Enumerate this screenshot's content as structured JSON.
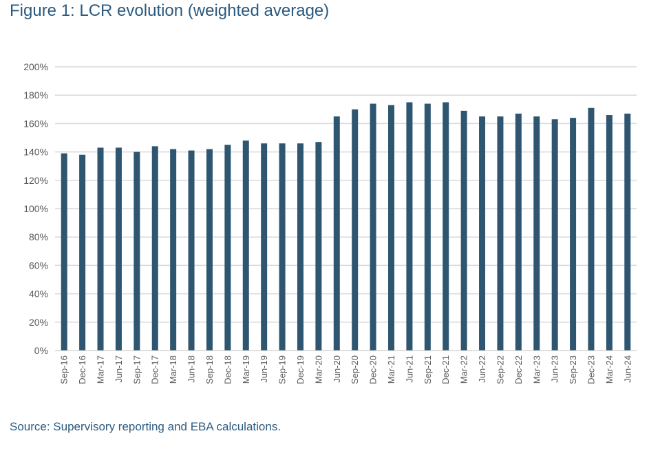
{
  "title": "Figure 1: LCR evolution (weighted average)",
  "source": "Source: Supervisory reporting and EBA calculations.",
  "chart_data": {
    "type": "bar",
    "title": "",
    "xlabel": "",
    "ylabel": "",
    "ylim": [
      0,
      200
    ],
    "y_ticks": [
      "0%",
      "20%",
      "40%",
      "60%",
      "80%",
      "100%",
      "120%",
      "140%",
      "160%",
      "180%",
      "200%"
    ],
    "grid": "horizontal",
    "bar_color": "#2f5670",
    "categories": [
      "Sep-16",
      "Dec-16",
      "Mar-17",
      "Jun-17",
      "Sep-17",
      "Dec-17",
      "Mar-18",
      "Jun-18",
      "Sep-18",
      "Dec-18",
      "Mar-19",
      "Jun-19",
      "Sep-19",
      "Dec-19",
      "Mar-20",
      "Jun-20",
      "Sep-20",
      "Dec-20",
      "Mar-21",
      "Jun-21",
      "Sep-21",
      "Dec-21",
      "Mar-22",
      "Jun-22",
      "Sep-22",
      "Dec-22",
      "Mar-23",
      "Jun-23",
      "Sep-23",
      "Dec-23",
      "Mar-24",
      "Jun-24"
    ],
    "values": [
      139,
      138,
      143,
      143,
      140,
      144,
      142,
      141,
      142,
      145,
      148,
      146,
      146,
      146,
      147,
      165,
      170,
      174,
      173,
      175,
      174,
      175,
      169,
      165,
      165,
      167,
      165,
      163,
      164,
      171,
      166,
      167
    ]
  }
}
